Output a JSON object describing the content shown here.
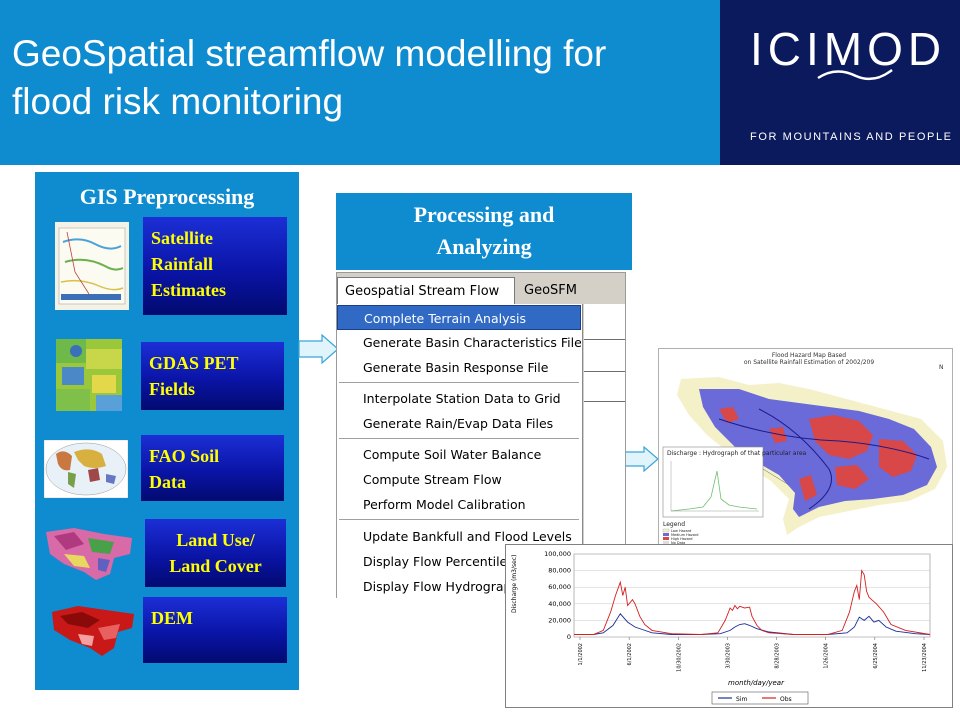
{
  "header": {
    "title_line1": "GeoSpatial streamflow modelling for",
    "title_line2": "flood risk monitoring",
    "logo": "ICIMOD",
    "tagline": "FOR MOUNTAINS AND PEOPLE",
    "bg_color": "#0f8bd0",
    "logo_bg": "#0b1a5c"
  },
  "gis": {
    "title": "GIS Preprocessing",
    "items": [
      {
        "label": "Satellite Rainfall Estimates",
        "lines": [
          "Satellite",
          "Rainfall",
          "Estimates"
        ]
      },
      {
        "label": "GDAS PET Fields",
        "lines": [
          "GDAS PET",
          "Fields"
        ]
      },
      {
        "label": "FAO Soil Data",
        "lines": [
          "FAO Soil",
          "Data"
        ]
      },
      {
        "label": "Land Use/ Land Cover",
        "lines": [
          "Land Use/",
          "Land Cover"
        ]
      },
      {
        "label": "DEM",
        "lines": [
          "DEM"
        ]
      }
    ]
  },
  "processing": {
    "title_line1": "Processing and",
    "title_line2": "Analyzing"
  },
  "menu": {
    "bar": [
      "Geospatial Stream Flow Model",
      "GeoSFM Utilities"
    ],
    "items": [
      "Complete Terrain Analysis",
      "Generate Basin Characteristics File",
      "Generate Basin Response File",
      "Interpolate Station Data to Grid",
      "Generate Rain/Evap Data Files",
      "Compute Soil Water Balance",
      "Compute Stream Flow",
      "Perform Model Calibration",
      "Update Bankfull and Flood Levels",
      "Display Flow Percentile Map",
      "Display Flow Hydrographs"
    ],
    "highlighted": "Complete Terrain Analysis"
  },
  "map": {
    "title_line1": "Flood Hazard Map Based",
    "title_line2": "on Satellite Rainfall Estimation of 2002/209",
    "inset_label": "Discharge : Hydrograph of that particular area",
    "legend_title": "Legend",
    "legend_items": [
      "Low Hazard",
      "Medium Hazard",
      "High Hazard",
      "No Data"
    ],
    "north": "N"
  },
  "chart_data": {
    "type": "line",
    "xlabel": "month/day/year",
    "ylabel": "Discharge (m3/sec)",
    "ylim": [
      0,
      100000
    ],
    "yticks": [
      "100,000",
      "80,000",
      "60,000",
      "40,000",
      "20,000",
      "0"
    ],
    "xticks": [
      "1/1/2002",
      "6/1/2002",
      "10/30/2002",
      "3/30/2003",
      "8/28/2003",
      "1/26/2004",
      "6/25/2004",
      "11/23/2004"
    ],
    "series": [
      {
        "name": "Sim",
        "color": "#1b2f9c",
        "x": [
          0,
          40,
          60,
          80,
          95,
          110,
          125,
          140,
          160,
          200,
          260,
          300,
          320,
          330,
          340,
          350,
          360,
          375,
          400,
          450,
          520,
          560,
          575,
          585,
          595,
          605,
          615,
          625,
          640,
          660,
          700,
          730
        ],
        "values": [
          3000,
          3000,
          5000,
          14000,
          28000,
          18000,
          12000,
          9000,
          5000,
          3000,
          3000,
          4000,
          8000,
          12000,
          15000,
          16000,
          14000,
          10000,
          6000,
          3000,
          3000,
          5000,
          12000,
          24000,
          20000,
          25000,
          18000,
          20000,
          12000,
          7000,
          4000,
          3000
        ]
      },
      {
        "name": "Obs",
        "color": "#d42020",
        "x": [
          0,
          40,
          60,
          75,
          85,
          95,
          100,
          105,
          110,
          120,
          125,
          135,
          145,
          160,
          200,
          260,
          295,
          310,
          320,
          325,
          330,
          335,
          340,
          350,
          360,
          365,
          375,
          385,
          400,
          450,
          520,
          550,
          565,
          575,
          580,
          585,
          590,
          595,
          600,
          605,
          610,
          620,
          635,
          650,
          680,
          730
        ],
        "values": [
          3000,
          3000,
          8000,
          30000,
          50000,
          66000,
          50000,
          60000,
          38000,
          45000,
          40000,
          25000,
          15000,
          8000,
          4000,
          3000,
          5000,
          20000,
          35000,
          32000,
          38000,
          34000,
          37000,
          35000,
          36000,
          25000,
          14000,
          8000,
          5000,
          3000,
          3000,
          8000,
          30000,
          55000,
          62000,
          45000,
          80000,
          75000,
          55000,
          48000,
          45000,
          40000,
          30000,
          15000,
          8000,
          3000
        ]
      }
    ]
  }
}
